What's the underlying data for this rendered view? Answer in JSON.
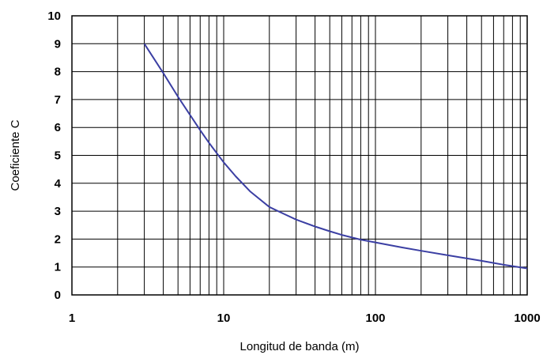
{
  "chart_data": {
    "type": "line",
    "title": "",
    "xlabel": "Longitud de banda (m)",
    "ylabel": "Coeficiente C",
    "xscale": "log",
    "xlim": [
      1,
      1000
    ],
    "ylim": [
      0,
      10
    ],
    "grid": true,
    "legend": "none",
    "x_tick_labels": [
      "1",
      "10",
      "100",
      "1000"
    ],
    "y_tick_labels": [
      "0",
      "1",
      "2",
      "3",
      "4",
      "5",
      "6",
      "7",
      "8",
      "9",
      "10"
    ],
    "series": [
      {
        "color": "#3b3fa3",
        "x": [
          3,
          4,
          5,
          6,
          7,
          8,
          10,
          12,
          15,
          20,
          25,
          30,
          40,
          50,
          60,
          80,
          100,
          150,
          200,
          300,
          500,
          700,
          1000
        ],
        "y": [
          9.0,
          7.95,
          7.1,
          6.45,
          5.9,
          5.45,
          4.75,
          4.25,
          3.7,
          3.15,
          2.9,
          2.7,
          2.45,
          2.28,
          2.15,
          1.98,
          1.88,
          1.7,
          1.58,
          1.42,
          1.22,
          1.08,
          0.95
        ]
      }
    ]
  }
}
